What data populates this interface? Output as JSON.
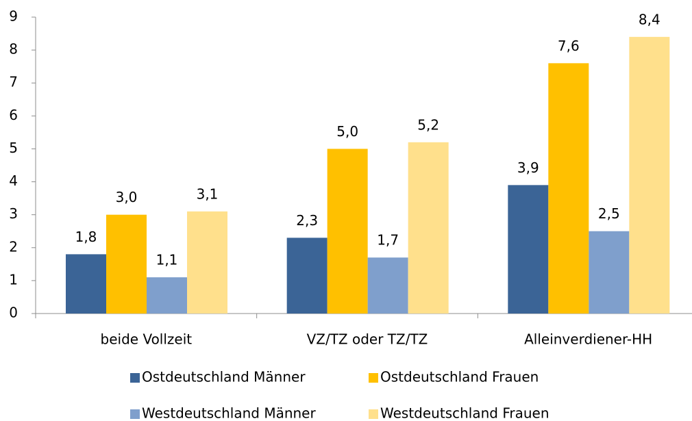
{
  "chart_data": {
    "type": "bar",
    "categories": [
      "beide Vollzeit",
      "VZ/TZ oder TZ/TZ",
      "Alleinverdiener-HH"
    ],
    "series": [
      {
        "name": "Ostdeutschland Männer",
        "color": "#3b6496",
        "values": [
          1.8,
          2.3,
          3.9
        ],
        "value_labels": [
          "1,8",
          "2,3",
          "3,9"
        ]
      },
      {
        "name": "Ostdeutschland Frauen",
        "color": "#ffc000",
        "values": [
          3.0,
          5.0,
          7.6
        ],
        "value_labels": [
          "3,0",
          "5,0",
          "7,6"
        ]
      },
      {
        "name": "Westdeutschland Männer",
        "color": "#7f9fcc",
        "values": [
          1.1,
          1.7,
          2.5
        ],
        "value_labels": [
          "1,1",
          "1,7",
          "2,5"
        ]
      },
      {
        "name": "Westdeutschland Frauen",
        "color": "#ffe08c",
        "values": [
          3.1,
          5.2,
          8.4
        ],
        "value_labels": [
          "3,1",
          "5,2",
          "8,4"
        ]
      }
    ],
    "ylim": [
      0,
      9
    ],
    "yticks": [
      0,
      1,
      2,
      3,
      4,
      5,
      6,
      7,
      8,
      9
    ],
    "grid": false,
    "legend": "bottom"
  }
}
